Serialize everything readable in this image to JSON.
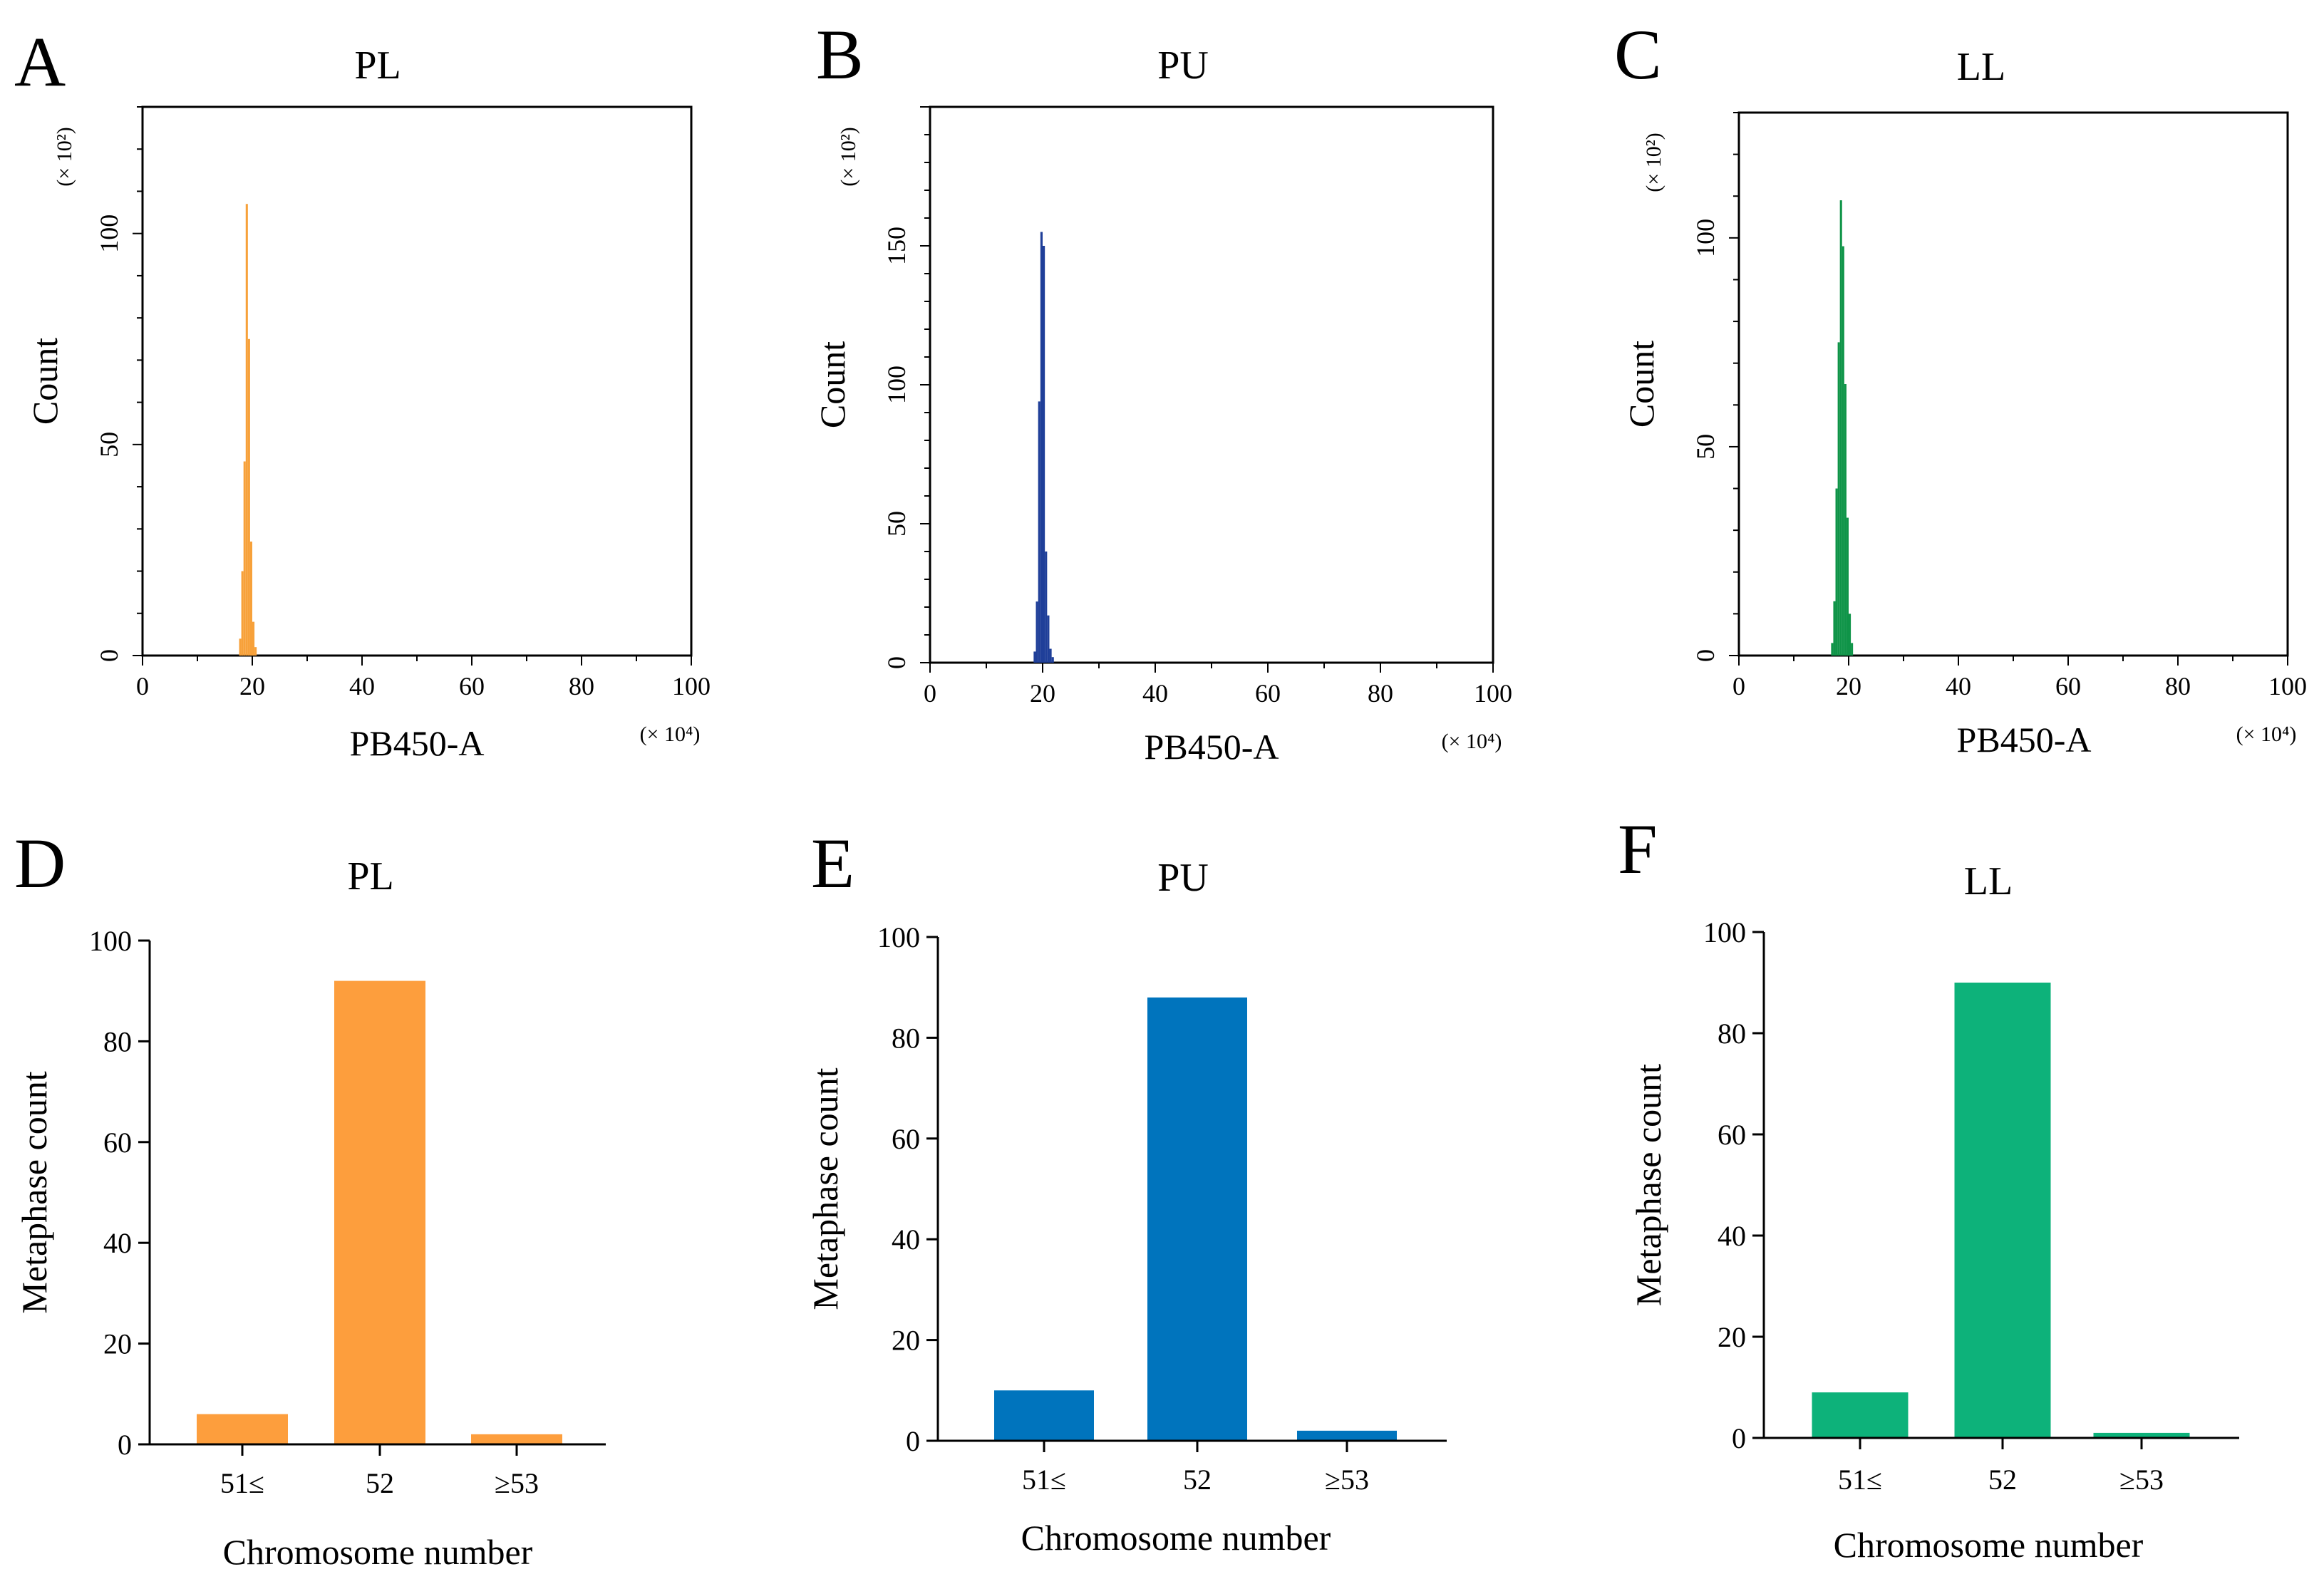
{
  "chart_data": [
    {
      "panel": "A",
      "type": "histogram",
      "title": "PL",
      "color": "#f7a13a",
      "xlabel": "PB450-A",
      "x_multiplier": "(× 10⁴)",
      "ylabel": "Count",
      "y_multiplier": "(× 10²)",
      "xlim": [
        0,
        100
      ],
      "ylim": [
        0,
        130
      ],
      "xticks": [
        0,
        20,
        40,
        60,
        80,
        100
      ],
      "yticks": [
        0,
        50,
        100
      ],
      "x": [
        17.8,
        18.2,
        18.6,
        19.0,
        19.4,
        19.8,
        20.2,
        20.6
      ],
      "values": [
        4,
        20,
        46,
        107,
        75,
        27,
        8,
        2
      ]
    },
    {
      "panel": "B",
      "type": "histogram",
      "title": "PU",
      "color": "#1f3f99",
      "xlabel": "PB450-A",
      "x_multiplier": "(× 10⁴)",
      "ylabel": "Count",
      "y_multiplier": "(× 10²)",
      "xlim": [
        0,
        100
      ],
      "ylim": [
        0,
        200
      ],
      "xticks": [
        0,
        20,
        40,
        60,
        80,
        100
      ],
      "yticks": [
        0,
        50,
        100,
        150
      ],
      "x": [
        18.6,
        19.0,
        19.4,
        19.8,
        20.2,
        20.6,
        21.0,
        21.4,
        21.8
      ],
      "values": [
        4,
        22,
        94,
        155,
        150,
        40,
        17,
        5,
        2
      ]
    },
    {
      "panel": "C",
      "type": "histogram",
      "title": "LL",
      "color": "#0f9448",
      "xlabel": "PB450-A",
      "x_multiplier": "(× 10⁴)",
      "ylabel": "Count",
      "y_multiplier": "(× 10²)",
      "xlim": [
        0,
        100
      ],
      "ylim": [
        0,
        130
      ],
      "xticks": [
        0,
        20,
        40,
        60,
        80,
        100
      ],
      "yticks": [
        0,
        50,
        100
      ],
      "x": [
        17.0,
        17.4,
        17.8,
        18.2,
        18.6,
        19.0,
        19.4,
        19.8,
        20.2,
        20.6
      ],
      "values": [
        3,
        13,
        40,
        75,
        109,
        98,
        65,
        33,
        10,
        3
      ]
    },
    {
      "panel": "D",
      "type": "bar",
      "title": "PL",
      "color": "#fd9e3d",
      "xlabel": "Chromosome number",
      "ylabel": "Metaphase count",
      "ylim": [
        0,
        100
      ],
      "yticks": [
        0,
        20,
        40,
        60,
        80,
        100
      ],
      "categories": [
        "51≤",
        "52",
        "≥53"
      ],
      "values": [
        6,
        92,
        2
      ]
    },
    {
      "panel": "E",
      "type": "bar",
      "title": "PU",
      "color": "#0074bd",
      "xlabel": "Chromosome number",
      "ylabel": "Metaphase count",
      "ylim": [
        0,
        100
      ],
      "yticks": [
        0,
        20,
        40,
        60,
        80,
        100
      ],
      "categories": [
        "51≤",
        "52",
        "≥53"
      ],
      "values": [
        10,
        88,
        2
      ]
    },
    {
      "panel": "F",
      "type": "bar",
      "title": "LL",
      "color": "#0db27a",
      "xlabel": "Chromosome number",
      "ylabel": "Metaphase count",
      "ylim": [
        0,
        100
      ],
      "yticks": [
        0,
        20,
        40,
        60,
        80,
        100
      ],
      "categories": [
        "51≤",
        "52",
        "≥53"
      ],
      "values": [
        9,
        90,
        1
      ]
    }
  ]
}
